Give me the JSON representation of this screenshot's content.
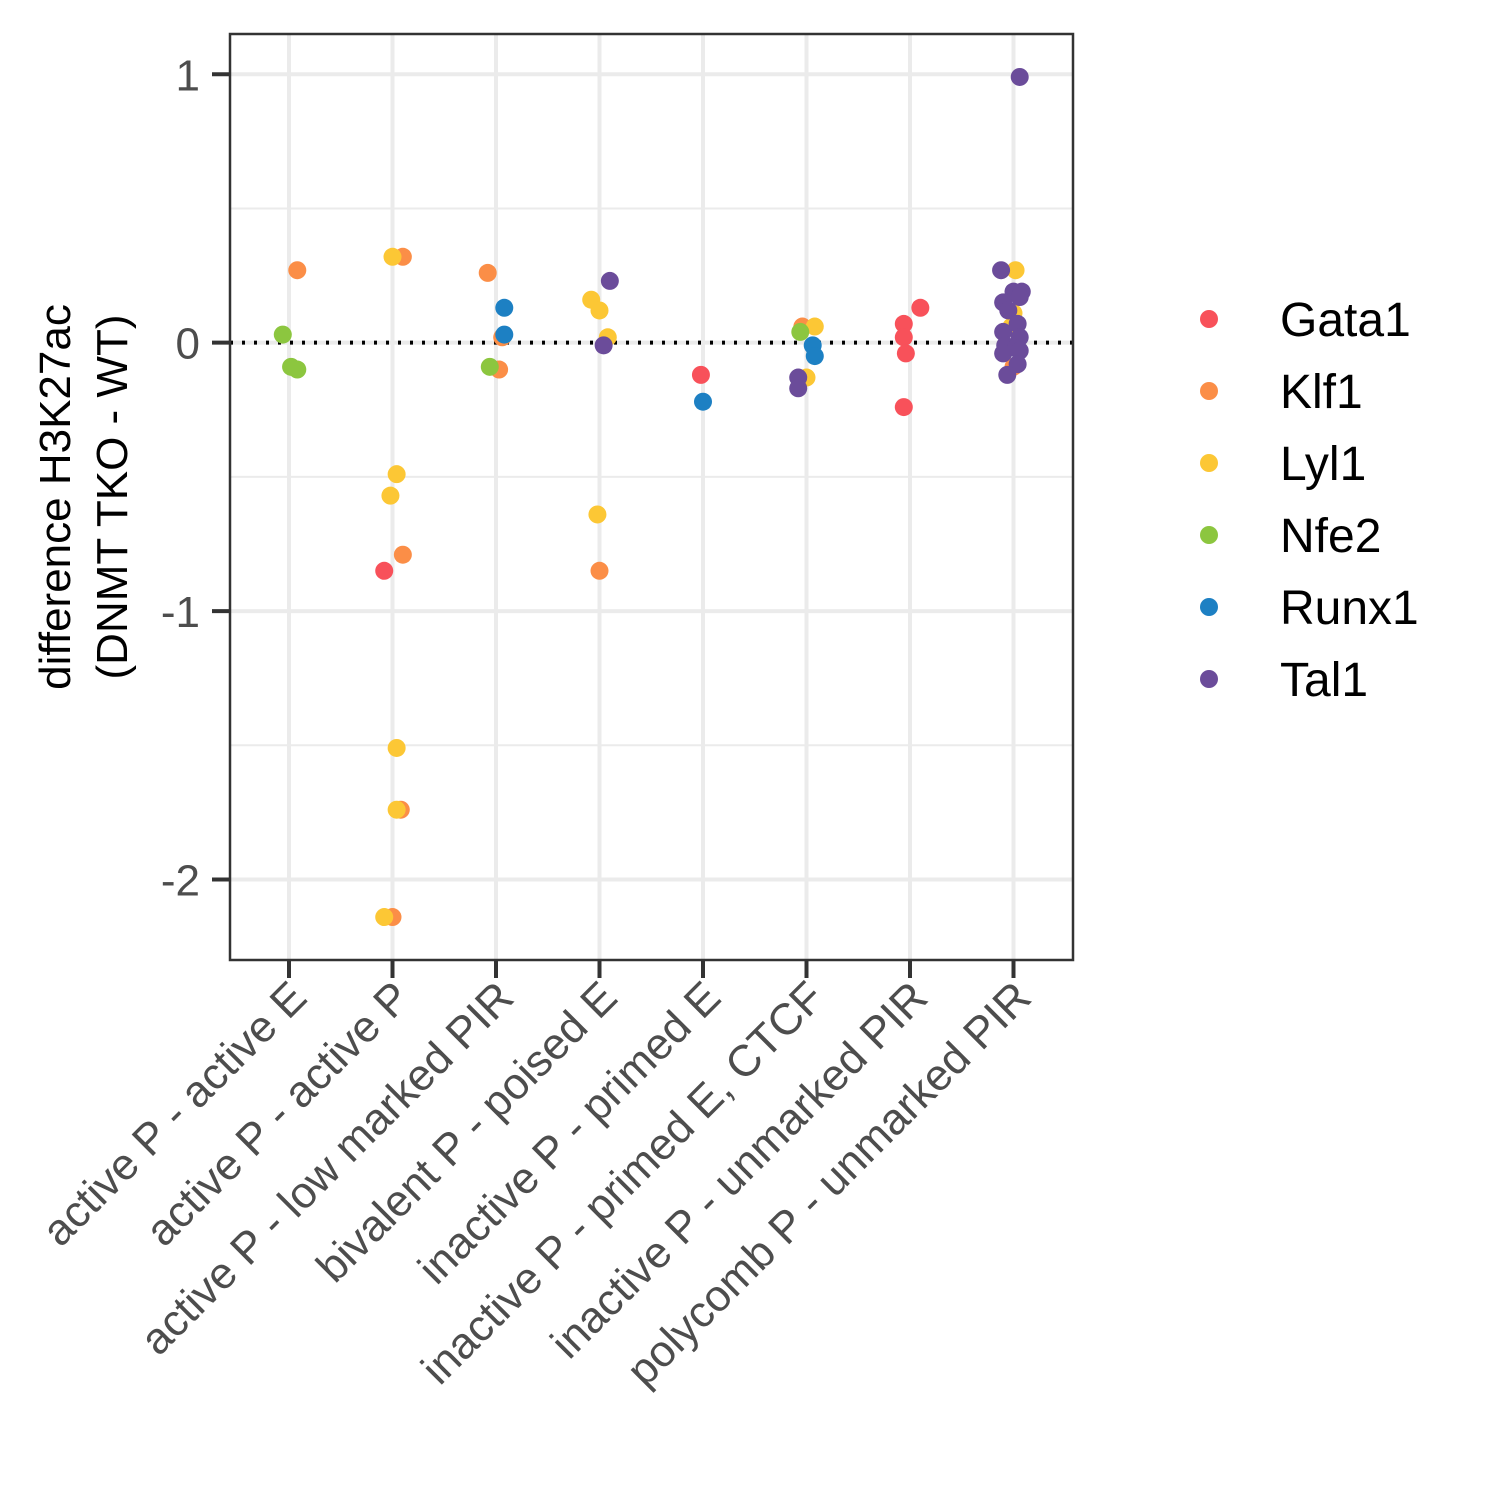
{
  "chart_data": {
    "type": "scatter",
    "title": "",
    "xlabel": "",
    "ylabel": [
      "difference H3K27ac",
      "(DNMT TKO - WT)"
    ],
    "ylim": [
      -2.3,
      1.15
    ],
    "yticks": [
      1,
      0,
      -1,
      -2
    ],
    "ytick_labels": [
      "1",
      "0",
      "-1",
      "-2"
    ],
    "reference_line": 0,
    "grid": true,
    "legend_position": "right",
    "categories": [
      "active P - active E",
      "active P - active P",
      "active P - low marked PIR",
      "bivalent P - poised E",
      "inactive P - primed E",
      "inactive P - primed E, CTCF",
      "inactive P - unmarked PIR",
      "polycomb P - unmarked PIR"
    ],
    "series": [
      {
        "name": "Gata1",
        "color": "#f8515a",
        "points": [
          {
            "category": 1,
            "jitter": -0.08,
            "y": -0.85
          },
          {
            "category": 4,
            "jitter": -0.02,
            "y": -0.12
          },
          {
            "category": 6,
            "jitter": -0.06,
            "y": 0.07
          },
          {
            "category": 6,
            "jitter": -0.06,
            "y": 0.02
          },
          {
            "category": 6,
            "jitter": -0.04,
            "y": -0.04
          },
          {
            "category": 6,
            "jitter": 0.1,
            "y": 0.13
          },
          {
            "category": 6,
            "jitter": -0.06,
            "y": -0.24
          }
        ]
      },
      {
        "name": "Klf1",
        "color": "#fb8e47",
        "points": [
          {
            "category": 0,
            "jitter": 0.08,
            "y": 0.27
          },
          {
            "category": 1,
            "jitter": 0.1,
            "y": 0.32
          },
          {
            "category": 1,
            "jitter": 0.1,
            "y": -0.79
          },
          {
            "category": 1,
            "jitter": 0.08,
            "y": -1.74
          },
          {
            "category": 1,
            "jitter": 0.0,
            "y": -2.14
          },
          {
            "category": 2,
            "jitter": -0.08,
            "y": 0.26
          },
          {
            "category": 2,
            "jitter": 0.06,
            "y": 0.02
          },
          {
            "category": 2,
            "jitter": 0.03,
            "y": -0.1
          },
          {
            "category": 3,
            "jitter": 0.0,
            "y": -0.85
          },
          {
            "category": 5,
            "jitter": -0.04,
            "y": 0.06
          },
          {
            "category": 7,
            "jitter": 0.0,
            "y": -0.09
          }
        ]
      },
      {
        "name": "Lyl1",
        "color": "#fcc735",
        "points": [
          {
            "category": 1,
            "jitter": 0.0,
            "y": 0.32
          },
          {
            "category": 1,
            "jitter": 0.04,
            "y": -0.49
          },
          {
            "category": 1,
            "jitter": -0.02,
            "y": -0.57
          },
          {
            "category": 1,
            "jitter": 0.04,
            "y": -1.51
          },
          {
            "category": 1,
            "jitter": 0.04,
            "y": -1.74
          },
          {
            "category": 1,
            "jitter": -0.08,
            "y": -2.14
          },
          {
            "category": 3,
            "jitter": -0.08,
            "y": 0.16
          },
          {
            "category": 3,
            "jitter": 0.0,
            "y": 0.12
          },
          {
            "category": 3,
            "jitter": 0.08,
            "y": 0.02
          },
          {
            "category": 3,
            "jitter": -0.02,
            "y": -0.64
          },
          {
            "category": 5,
            "jitter": 0.08,
            "y": 0.06
          },
          {
            "category": 5,
            "jitter": 0.0,
            "y": -0.13
          },
          {
            "category": 7,
            "jitter": 0.02,
            "y": 0.27
          },
          {
            "category": 7,
            "jitter": 0.0,
            "y": 0.11
          },
          {
            "category": 7,
            "jitter": -0.02,
            "y": 0.06
          }
        ]
      },
      {
        "name": "Nfe2",
        "color": "#8cc63f",
        "points": [
          {
            "category": 0,
            "jitter": -0.06,
            "y": 0.03
          },
          {
            "category": 0,
            "jitter": 0.02,
            "y": -0.09
          },
          {
            "category": 0,
            "jitter": 0.08,
            "y": -0.1
          },
          {
            "category": 2,
            "jitter": -0.06,
            "y": -0.09
          },
          {
            "category": 5,
            "jitter": -0.06,
            "y": 0.04
          }
        ]
      },
      {
        "name": "Runx1",
        "color": "#1d80c3",
        "points": [
          {
            "category": 2,
            "jitter": 0.08,
            "y": 0.13
          },
          {
            "category": 2,
            "jitter": 0.08,
            "y": 0.03
          },
          {
            "category": 4,
            "jitter": 0.0,
            "y": -0.22
          },
          {
            "category": 5,
            "jitter": 0.06,
            "y": -0.01
          },
          {
            "category": 5,
            "jitter": 0.08,
            "y": -0.05
          }
        ]
      },
      {
        "name": "Tal1",
        "color": "#6b4c9a",
        "points": [
          {
            "category": 3,
            "jitter": 0.1,
            "y": 0.23
          },
          {
            "category": 3,
            "jitter": 0.04,
            "y": -0.01
          },
          {
            "category": 5,
            "jitter": -0.08,
            "y": -0.13
          },
          {
            "category": 5,
            "jitter": -0.08,
            "y": -0.17
          },
          {
            "category": 7,
            "jitter": 0.06,
            "y": 0.99
          },
          {
            "category": 7,
            "jitter": -0.12,
            "y": 0.27
          },
          {
            "category": 7,
            "jitter": 0.0,
            "y": 0.19
          },
          {
            "category": 7,
            "jitter": 0.08,
            "y": 0.19
          },
          {
            "category": 7,
            "jitter": 0.06,
            "y": 0.17
          },
          {
            "category": 7,
            "jitter": -0.1,
            "y": 0.15
          },
          {
            "category": 7,
            "jitter": -0.05,
            "y": 0.12
          },
          {
            "category": 7,
            "jitter": 0.04,
            "y": 0.07
          },
          {
            "category": 7,
            "jitter": -0.1,
            "y": 0.04
          },
          {
            "category": 7,
            "jitter": 0.06,
            "y": 0.02
          },
          {
            "category": 7,
            "jitter": -0.08,
            "y": -0.01
          },
          {
            "category": 7,
            "jitter": 0.02,
            "y": -0.02
          },
          {
            "category": 7,
            "jitter": 0.06,
            "y": -0.03
          },
          {
            "category": 7,
            "jitter": -0.1,
            "y": -0.04
          },
          {
            "category": 7,
            "jitter": 0.04,
            "y": -0.08
          },
          {
            "category": 7,
            "jitter": -0.06,
            "y": -0.12
          }
        ]
      }
    ]
  }
}
